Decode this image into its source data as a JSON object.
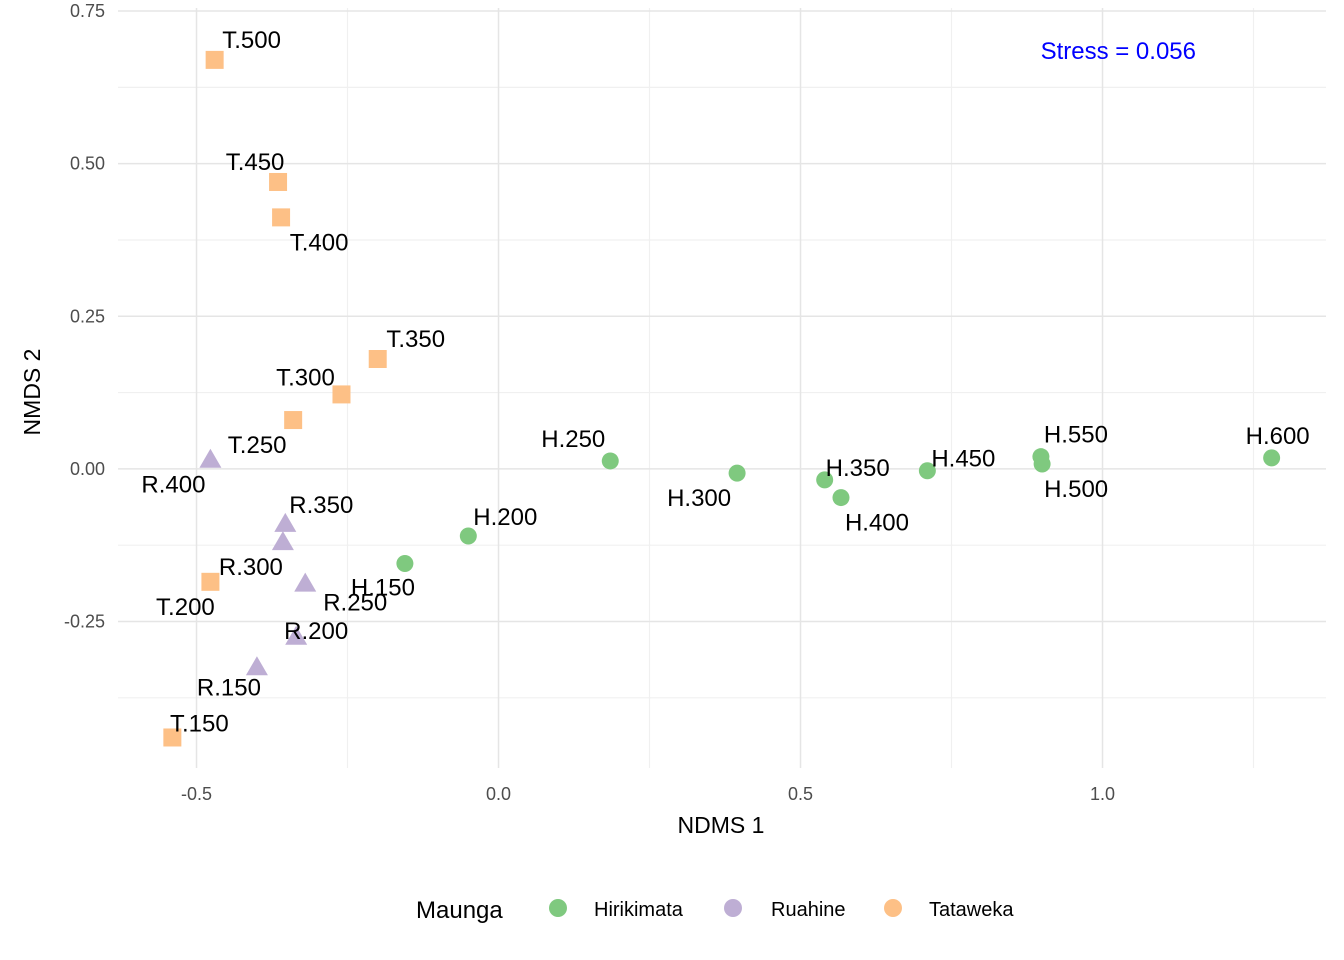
{
  "chart_data": {
    "type": "scatter",
    "title": "",
    "xlabel": "NDMS 1",
    "ylabel": "NMDS 2",
    "xlim": [
      -0.63,
      1.37
    ],
    "ylim": [
      -0.49,
      0.755
    ],
    "x_ticks": [
      -0.5,
      0.0,
      0.5,
      1.0
    ],
    "x_tick_labels": [
      "-0.5",
      "0.0",
      "0.5",
      "1.0"
    ],
    "y_ticks": [
      0.75,
      0.5,
      0.25,
      0.0,
      -0.25
    ],
    "y_tick_labels": [
      "0.75",
      "0.50",
      "0.25",
      "0.00",
      "-0.25"
    ],
    "grid": true,
    "legend_position": "bottom",
    "legend_title": "Maunga",
    "annotation": {
      "text": "Stress =  0.056",
      "color": "#0000ff"
    },
    "series": [
      {
        "name": "Hirikimata",
        "color": "#7fc97f",
        "shape": "circle",
        "points": [
          {
            "label": "H.150",
            "x": -0.155,
            "y": -0.155
          },
          {
            "label": "H.200",
            "x": -0.05,
            "y": -0.11
          },
          {
            "label": "H.250",
            "x": 0.185,
            "y": 0.013
          },
          {
            "label": "H.300",
            "x": 0.395,
            "y": -0.007
          },
          {
            "label": "H.350",
            "x": 0.54,
            "y": -0.018
          },
          {
            "label": "H.400",
            "x": 0.567,
            "y": -0.047
          },
          {
            "label": "H.450",
            "x": 0.71,
            "y": -0.003
          },
          {
            "label": "H.500",
            "x": 0.9,
            "y": 0.008
          },
          {
            "label": "H.550",
            "x": 0.898,
            "y": 0.02
          },
          {
            "label": "H.600",
            "x": 1.28,
            "y": 0.018
          }
        ]
      },
      {
        "name": "Ruahine",
        "color": "#beaed4",
        "shape": "triangle",
        "points": [
          {
            "label": "R.150",
            "x": -0.4,
            "y": -0.325
          },
          {
            "label": "R.200",
            "x": -0.335,
            "y": -0.275
          },
          {
            "label": "R.250",
            "x": -0.32,
            "y": -0.188
          },
          {
            "label": "R.300",
            "x": -0.357,
            "y": -0.12
          },
          {
            "label": "R.350",
            "x": -0.353,
            "y": -0.09
          },
          {
            "label": "R.400",
            "x": -0.477,
            "y": 0.015
          }
        ]
      },
      {
        "name": "Tataweka",
        "color": "#fdc086",
        "shape": "square",
        "points": [
          {
            "label": "T.150",
            "x": -0.54,
            "y": -0.44
          },
          {
            "label": "T.200",
            "x": -0.477,
            "y": -0.185
          },
          {
            "label": "T.250",
            "x": -0.34,
            "y": 0.08
          },
          {
            "label": "T.300",
            "x": -0.26,
            "y": 0.122
          },
          {
            "label": "T.350",
            "x": -0.2,
            "y": 0.18
          },
          {
            "label": "T.400",
            "x": -0.36,
            "y": 0.412
          },
          {
            "label": "T.450",
            "x": -0.365,
            "y": 0.47
          },
          {
            "label": "T.500",
            "x": -0.47,
            "y": 0.67
          }
        ]
      }
    ]
  }
}
